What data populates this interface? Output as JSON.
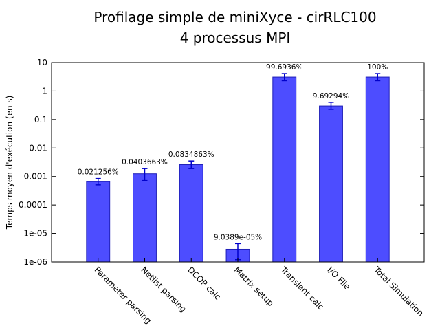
{
  "chart_data": {
    "type": "bar",
    "title": "Profilage simple de miniXyce - cirRLC100",
    "subtitle": "4 processus MPI",
    "xlabel": "",
    "ylabel": "Temps moyen d'exécution (en s)",
    "yscale": "log",
    "ylim": [
      1e-06,
      10
    ],
    "yticks": [
      "1e-06",
      "1e-05",
      "0.0001",
      "0.001",
      "0.01",
      "0.1",
      "1",
      "10"
    ],
    "grid": false,
    "legend": "none",
    "bar_color": "#4d4dff",
    "bar_edge_color": "#1f1fb8",
    "errorbar_color": "#0000cc",
    "categories": [
      "Parameter parsing",
      "Netlist parsing",
      "DCOP calc",
      "Matrix setup",
      "Transient calc",
      "I/O File",
      "Total Simulation"
    ],
    "values": [
      0.00066,
      0.00125,
      0.0026,
      2.8e-06,
      3.1,
      0.3,
      3.1
    ],
    "error_low": [
      0.00051,
      0.00072,
      0.0019,
      1.2e-06,
      2.3,
      0.23,
      2.3
    ],
    "error_high": [
      0.00085,
      0.0019,
      0.0035,
      4.4e-06,
      4.1,
      0.4,
      4.1
    ],
    "data_labels": [
      "0.021256%",
      "0.0403663%",
      "0.0834863%",
      "9.0389e-05%",
      "99.6936%",
      "9.69294%",
      "100%"
    ]
  }
}
